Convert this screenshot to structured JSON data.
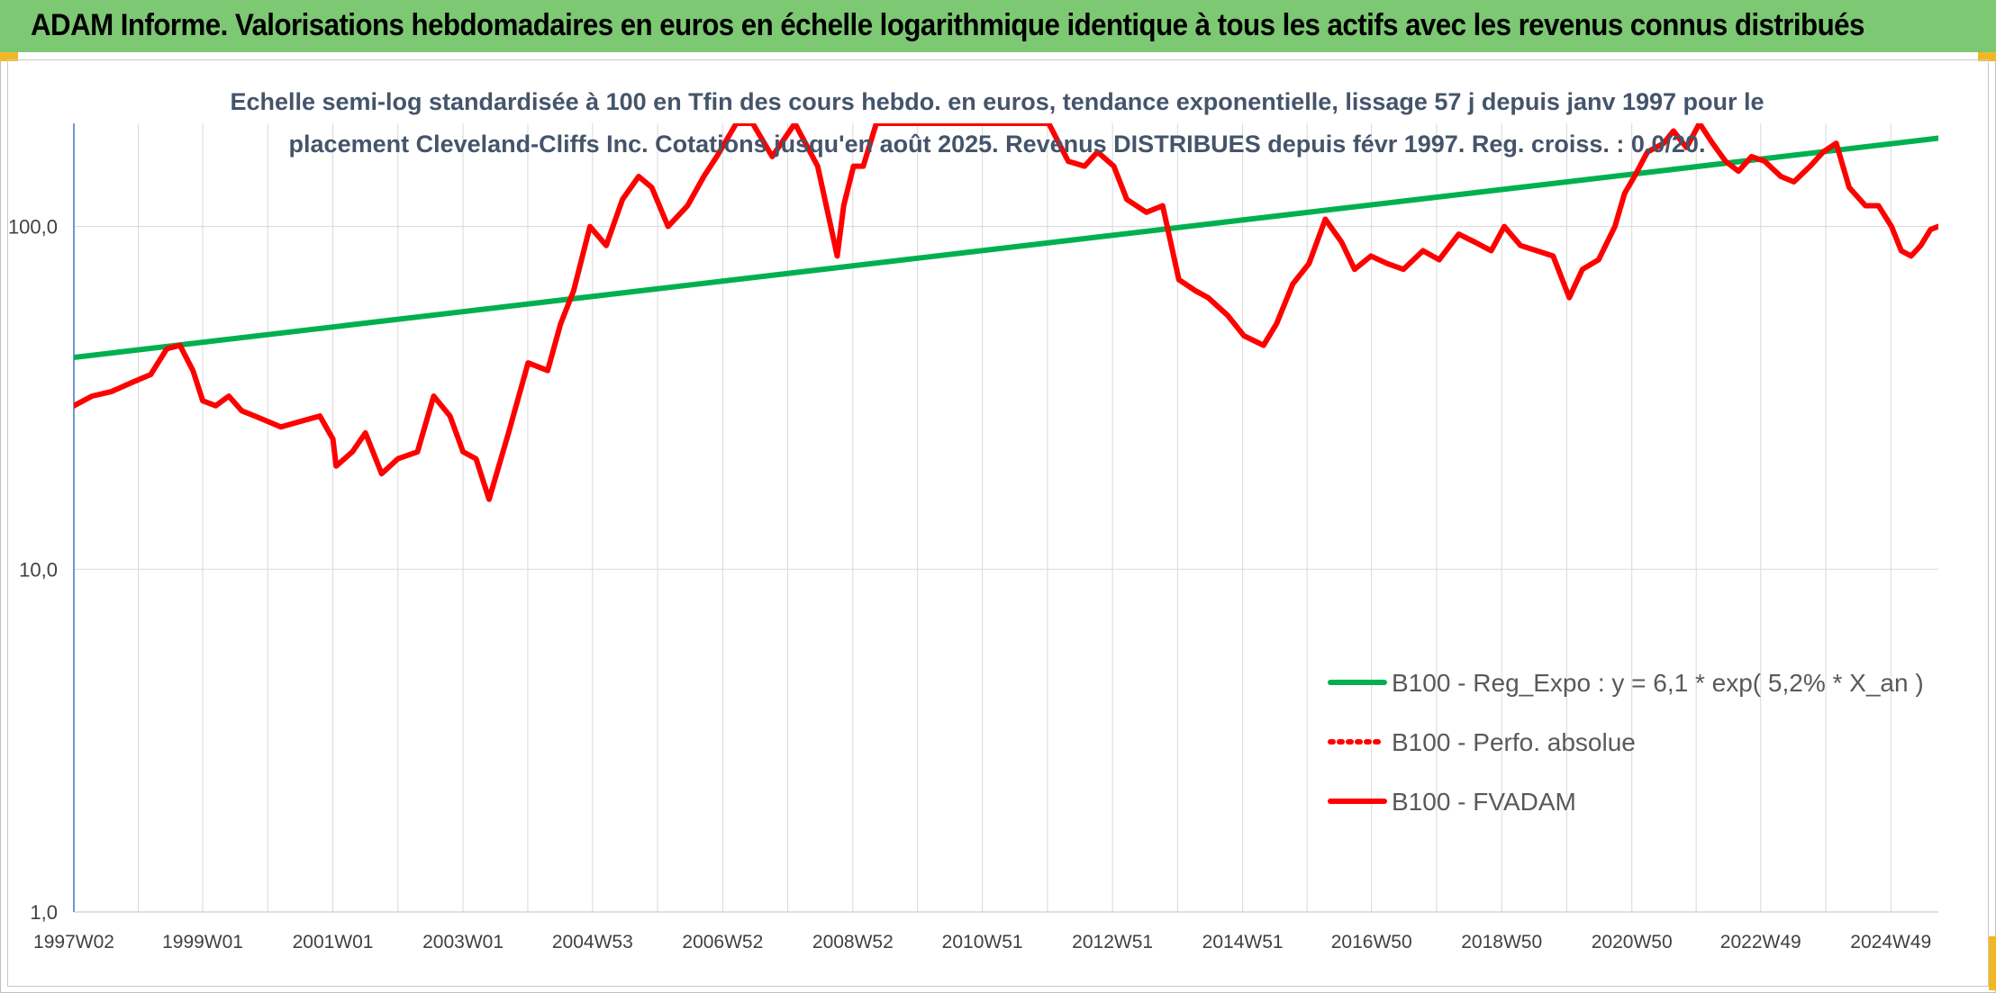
{
  "header": {
    "title": "ADAM Informe. Valorisations hebdomadaires en euros en échelle logarithmique identique à tous les actifs avec les revenus connus distribués"
  },
  "chart_data": {
    "type": "line",
    "subtitle_lines": [
      "Echelle semi-log standardisée à 100 en Tfin des cours hebdo. en euros, tendance exponentielle, lissage 57 j depuis janv 1997 pour le",
      "placement Cleveland-Cliffs Inc. Cotations jusqu'en août 2025. Revenus DISTRIBUES depuis févr 1997. Reg. croiss. : 0,0/20."
    ],
    "y_scale": "log",
    "ylim": [
      1,
      200
    ],
    "y_ticks": [
      {
        "value": 1,
        "label": "1,0"
      },
      {
        "value": 10,
        "label": "10,0"
      },
      {
        "value": 100,
        "label": "100,0"
      }
    ],
    "xlim": [
      1997.02,
      2025.67
    ],
    "x_ticks": [
      {
        "value": 1997.02,
        "label": "1997W02"
      },
      {
        "value": 1999.0,
        "label": "1999W01"
      },
      {
        "value": 2001.0,
        "label": "2001W01"
      },
      {
        "value": 2003.0,
        "label": "2003W01"
      },
      {
        "value": 2004.99,
        "label": "2004W53"
      },
      {
        "value": 2006.99,
        "label": "2006W52"
      },
      {
        "value": 2008.99,
        "label": "2008W52"
      },
      {
        "value": 2010.98,
        "label": "2010W51"
      },
      {
        "value": 2012.98,
        "label": "2012W51"
      },
      {
        "value": 2014.98,
        "label": "2014W51"
      },
      {
        "value": 2016.96,
        "label": "2016W50"
      },
      {
        "value": 2018.96,
        "label": "2018W50"
      },
      {
        "value": 2020.96,
        "label": "2020W50"
      },
      {
        "value": 2022.94,
        "label": "2022W49"
      },
      {
        "value": 2024.94,
        "label": "2024W49"
      }
    ],
    "grid": true,
    "legend_position": "bottom-right",
    "series": [
      {
        "name": "B100 - Reg_Expo : y = 6,1 * exp( 5,2% *  X_an )",
        "color": "#00b050",
        "style": "solid",
        "x": [
          1997.02,
          2025.67
        ],
        "y": [
          41.5,
          181
        ]
      },
      {
        "name": "B100 - Perfo. absolue",
        "color": "#ff0000",
        "style": "dotted",
        "x": [],
        "y": []
      },
      {
        "name": "B100 - FVADAM",
        "color": "#ff0000",
        "style": "solid",
        "x": [
          1997.02,
          1997.3,
          1997.6,
          1997.9,
          1998.2,
          1998.45,
          1998.65,
          1998.85,
          1999.0,
          1999.2,
          1999.4,
          1999.6,
          1999.8,
          2000.0,
          2000.2,
          2000.5,
          2000.8,
          2001.0,
          2001.05,
          2001.3,
          2001.5,
          2001.75,
          2002.0,
          2002.3,
          2002.55,
          2002.8,
          2003.0,
          2003.2,
          2003.4,
          2003.7,
          2004.0,
          2004.3,
          2004.5,
          2004.7,
          2004.95,
          2005.2,
          2005.45,
          2005.7,
          2005.9,
          2006.15,
          2006.45,
          2006.7,
          2006.9,
          2007.2,
          2007.45,
          2007.75,
          2008.1,
          2008.45,
          2008.75,
          2008.85,
          2009.0,
          2009.15,
          2009.35,
          2009.6,
          2009.8,
          2010.0,
          2012.0,
          2012.3,
          2012.55,
          2012.75,
          2013.0,
          2013.2,
          2013.5,
          2013.75,
          2014.0,
          2014.25,
          2014.45,
          2014.75,
          2015.0,
          2015.3,
          2015.5,
          2015.75,
          2016.0,
          2016.25,
          2016.5,
          2016.7,
          2016.95,
          2017.2,
          2017.45,
          2017.75,
          2018.0,
          2018.3,
          2018.55,
          2018.8,
          2019.0,
          2019.25,
          2019.5,
          2019.75,
          2020.0,
          2020.2,
          2020.45,
          2020.7,
          2020.85,
          2021.0,
          2021.2,
          2021.45,
          2021.6,
          2021.8,
          2022.0,
          2022.2,
          2022.4,
          2022.6,
          2022.8,
          2023.0,
          2023.25,
          2023.45,
          2023.7,
          2023.9,
          2024.1,
          2024.3,
          2024.55,
          2024.75,
          2024.95,
          2025.1,
          2025.25,
          2025.4,
          2025.55,
          2025.67
        ],
        "y": [
          30,
          32,
          33,
          35,
          37,
          44,
          45,
          38,
          31,
          30,
          32,
          29,
          28,
          27,
          26,
          27,
          28,
          24,
          20,
          22,
          25,
          19,
          21,
          22,
          32,
          28,
          22,
          21,
          16,
          25,
          40,
          38,
          52,
          65,
          100,
          88,
          120,
          140,
          130,
          100,
          115,
          140,
          160,
          200,
          200,
          160,
          200,
          150,
          82,
          115,
          150,
          150,
          200,
          200,
          200,
          200,
          200,
          155,
          150,
          165,
          150,
          120,
          110,
          115,
          70,
          65,
          62,
          55,
          48,
          45,
          52,
          68,
          78,
          105,
          90,
          75,
          82,
          78,
          75,
          85,
          80,
          95,
          90,
          85,
          100,
          88,
          85,
          82,
          62,
          75,
          80,
          100,
          125,
          140,
          165,
          175,
          190,
          170,
          200,
          175,
          155,
          145,
          160,
          155,
          140,
          135,
          150,
          165,
          175,
          130,
          115,
          115,
          100,
          85,
          82,
          88,
          98,
          100
        ]
      }
    ]
  }
}
